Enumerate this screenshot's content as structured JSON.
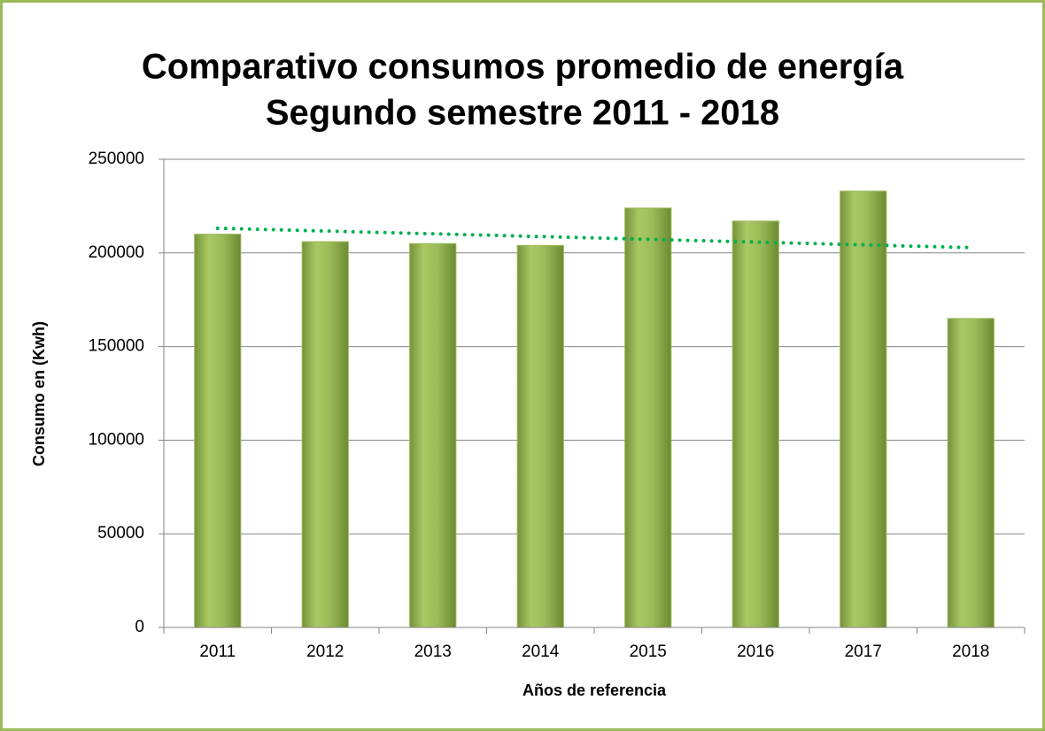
{
  "chart_data": {
    "type": "bar",
    "title": [
      "Comparativo consumos promedio de energía",
      "Segundo semestre 2011 - 2018"
    ],
    "x_label": "Años de referencia",
    "y_label": "Consumo en (Kwh)",
    "categories": [
      "2011",
      "2012",
      "2013",
      "2014",
      "2015",
      "2016",
      "2017",
      "2018"
    ],
    "values": [
      210000,
      206000,
      205000,
      204000,
      224000,
      217000,
      233000,
      165000
    ],
    "color": "#9bbb59",
    "trendline": true,
    "trendline_color": "#00b050",
    "ylim": [
      0,
      250000
    ],
    "yticks": [
      0,
      50000,
      100000,
      150000,
      200000,
      250000
    ],
    "grid": true
  }
}
